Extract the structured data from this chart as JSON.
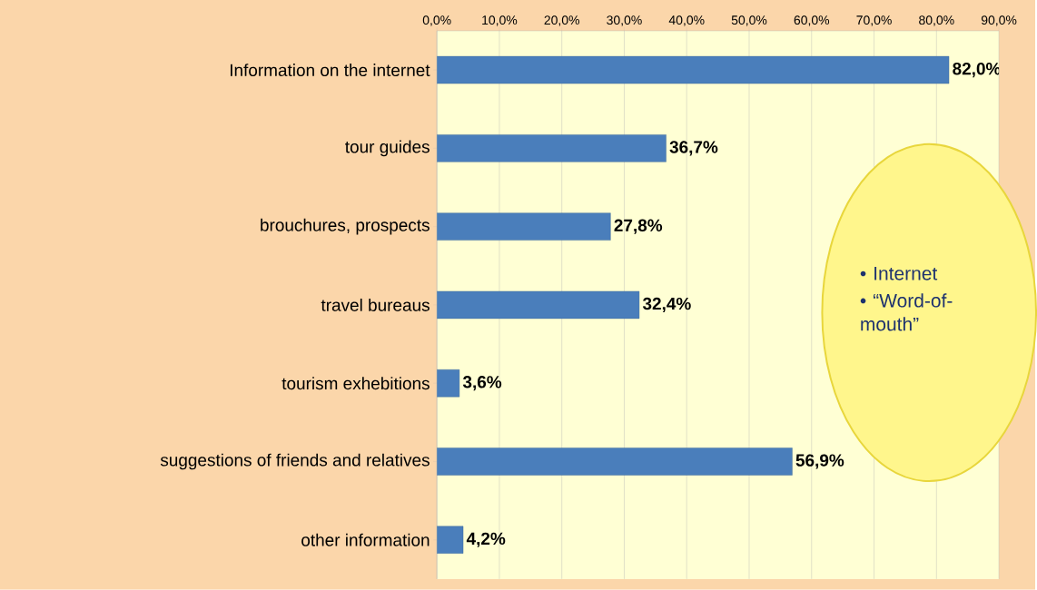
{
  "chart_data": {
    "type": "bar",
    "orientation": "horizontal",
    "categories": [
      "Information on the internet",
      "tour guides",
      "brouchures, prospects",
      "travel bureaus",
      "tourism exhebitions",
      "suggestions of friends and relatives",
      "other information"
    ],
    "values": [
      82.0,
      36.7,
      27.8,
      32.4,
      3.6,
      56.9,
      4.2
    ],
    "value_labels": [
      "82,0%",
      "36,7%",
      "27,8%",
      "32,4%",
      "3,6%",
      "56,9%",
      "4,2%"
    ],
    "color": "#4a7ebb",
    "xlim": [
      0,
      90
    ],
    "xticks": [
      {
        "value": 0,
        "label": "0,0%"
      },
      {
        "value": 10,
        "label": "10,0%"
      },
      {
        "value": 20,
        "label": "20,0%"
      },
      {
        "value": 30,
        "label": "30,0%"
      },
      {
        "value": 40,
        "label": "40,0%"
      },
      {
        "value": 50,
        "label": "50,0%"
      },
      {
        "value": 60,
        "label": "60,0%"
      },
      {
        "value": 70,
        "label": "70,0%"
      },
      {
        "value": 80,
        "label": "80,0%"
      },
      {
        "value": 90,
        "label": "90,0%"
      }
    ],
    "grid": "x",
    "annotations": [
      "• Internet",
      "• “Word-of-mouth”"
    ]
  }
}
